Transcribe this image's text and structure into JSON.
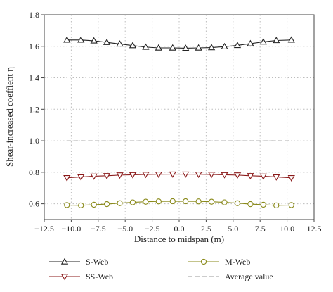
{
  "chart_data": {
    "type": "line",
    "xlabel": "Distance to midspan (m)",
    "ylabel": "Shear-increased coeffient η",
    "xlim": [
      -12.5,
      12.5
    ],
    "ylim": [
      0.5,
      1.8
    ],
    "xticks": [
      -12.5,
      -10.0,
      -7.5,
      -5.0,
      -2.5,
      0.0,
      2.5,
      5.0,
      7.5,
      10.0,
      12.5
    ],
    "xtick_labels": [
      "−12.5",
      "−10.0",
      "−7.5",
      "−5.0",
      "−2.5",
      "0.0",
      "2.5",
      "5.0",
      "7.5",
      "10.0",
      "12.5"
    ],
    "yticks": [
      0.6,
      0.8,
      1.0,
      1.2,
      1.4,
      1.6,
      1.8
    ],
    "ytick_labels": [
      "0.6",
      "0.8",
      "1.0",
      "1.2",
      "1.4",
      "1.6",
      "1.8"
    ],
    "grid": true,
    "legend_position": "bottom",
    "x": [
      -10.4,
      -9.1,
      -7.9,
      -6.7,
      -5.5,
      -4.3,
      -3.1,
      -1.9,
      -0.6,
      0.6,
      1.8,
      3.0,
      4.2,
      5.4,
      6.6,
      7.8,
      9.0,
      10.4
    ],
    "series": [
      {
        "name": "S-Web",
        "marker": "triangle-up",
        "color": "#222222",
        "values": [
          1.64,
          1.64,
          1.635,
          1.625,
          1.615,
          1.605,
          1.595,
          1.59,
          1.59,
          1.588,
          1.59,
          1.592,
          1.598,
          1.606,
          1.617,
          1.628,
          1.637,
          1.64
        ]
      },
      {
        "name": "SS-Web",
        "marker": "triangle-down",
        "color": "#8b1a1a",
        "values": [
          0.765,
          0.77,
          0.775,
          0.778,
          0.782,
          0.784,
          0.786,
          0.787,
          0.788,
          0.788,
          0.787,
          0.786,
          0.784,
          0.782,
          0.778,
          0.775,
          0.77,
          0.765
        ]
      },
      {
        "name": "M-Web",
        "marker": "circle",
        "color": "#8a8a1a",
        "values": [
          0.592,
          0.59,
          0.594,
          0.598,
          0.604,
          0.609,
          0.613,
          0.615,
          0.616,
          0.616,
          0.615,
          0.613,
          0.609,
          0.604,
          0.598,
          0.594,
          0.59,
          0.592
        ]
      },
      {
        "name": "Average value",
        "marker": "none",
        "color": "#999999",
        "style": "dashed",
        "values": [
          1.0,
          1.0,
          1.0,
          1.0,
          1.0,
          1.0,
          1.0,
          1.0,
          1.0,
          1.0,
          1.0,
          1.0,
          1.0,
          1.0,
          1.0,
          1.0,
          1.0,
          1.0
        ]
      }
    ]
  }
}
